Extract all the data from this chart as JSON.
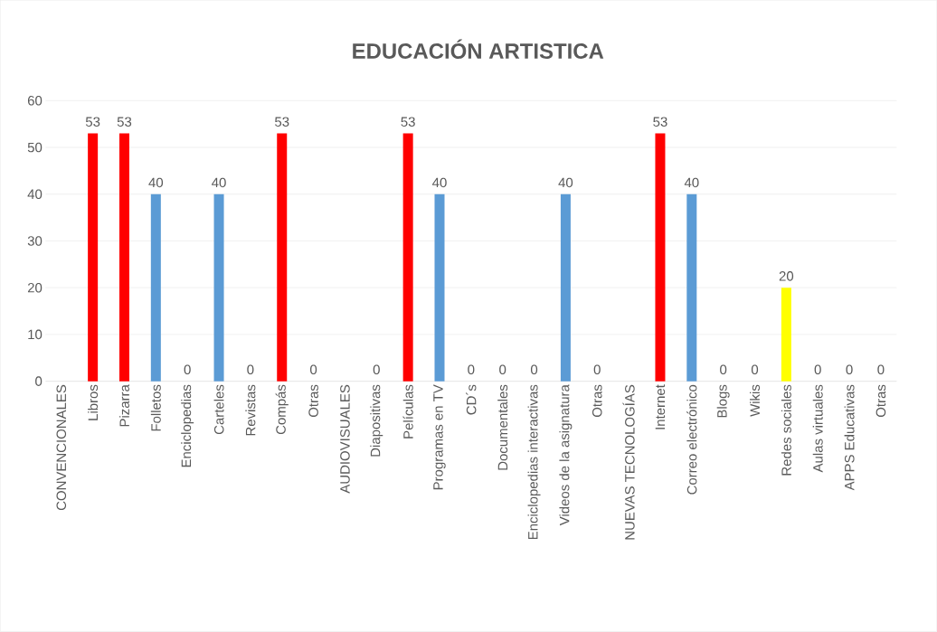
{
  "chart_data": {
    "type": "bar",
    "title": "EDUCACIÓN ARTISTICA",
    "categories": [
      "CONVENCIONALES",
      "Libros",
      "Pizarra",
      "Folletos",
      "Enciclopedias",
      "Carteles",
      "Revistas",
      "Compás",
      "Otras",
      "AUDIOVISUALES",
      "Diapositivas",
      "Películas",
      "Programas en TV",
      "CD´s",
      "Documentales",
      "Enciclopedias interactivas",
      "Videos de la asignatura",
      "Otras",
      "NUEVAS TECNOLOGÍAS",
      "Internet",
      "Correo electrónico",
      "Blogs",
      "Wikis",
      "Redes sociales",
      "Aulas  virtuales",
      "APPS Educativas",
      "Otras"
    ],
    "values": [
      null,
      53,
      53,
      40,
      0,
      40,
      0,
      53,
      0,
      null,
      0,
      53,
      40,
      0,
      0,
      0,
      40,
      0,
      null,
      53,
      40,
      0,
      0,
      20,
      0,
      0,
      0
    ],
    "colors": [
      "#5b9bd5",
      "#ff0000",
      "#ff0000",
      "#5b9bd5",
      "#5b9bd5",
      "#5b9bd5",
      "#5b9bd5",
      "#ff0000",
      "#5b9bd5",
      "#5b9bd5",
      "#5b9bd5",
      "#ff0000",
      "#5b9bd5",
      "#5b9bd5",
      "#5b9bd5",
      "#5b9bd5",
      "#5b9bd5",
      "#5b9bd5",
      "#5b9bd5",
      "#ff0000",
      "#5b9bd5",
      "#5b9bd5",
      "#5b9bd5",
      "#ffff00",
      "#5b9bd5",
      "#5b9bd5",
      "#5b9bd5"
    ],
    "ylim": [
      0,
      60
    ],
    "yticks": [
      0,
      10,
      20,
      30,
      40,
      50,
      60
    ],
    "grid": "y",
    "data_labels": true
  }
}
